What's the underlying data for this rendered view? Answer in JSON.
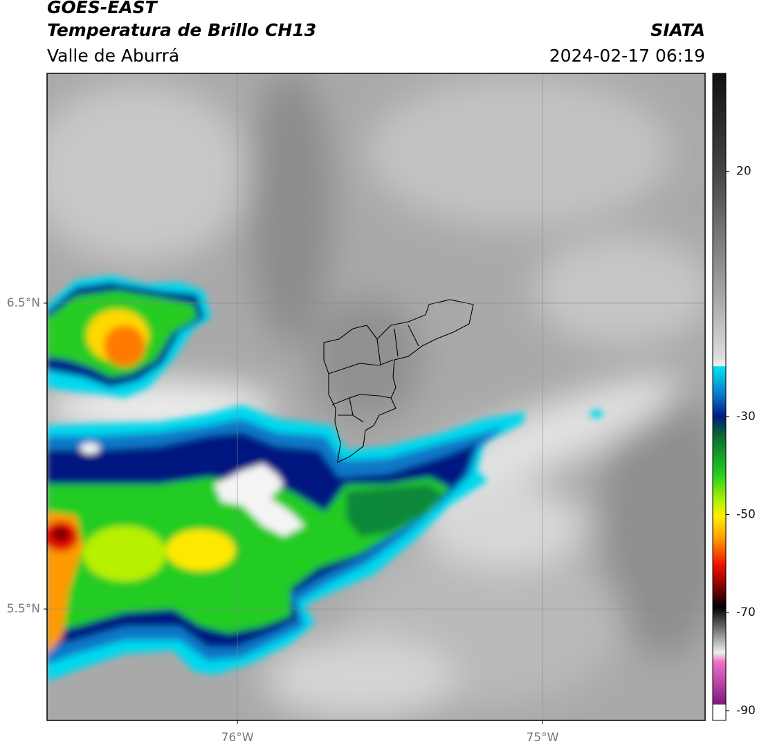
{
  "header": {
    "title": "GOES-EAST",
    "subtitle": "Temperatura de Brillo CH13",
    "region": "Valle de Aburrá",
    "source": "SIATA",
    "timestamp": "2024-02-17 06:19"
  },
  "map": {
    "xlim": [
      -76.624,
      -74.467
    ],
    "ylim": [
      5.136,
      7.251
    ],
    "xticks": [
      {
        "value": -76,
        "label": "76°W"
      },
      {
        "value": -75,
        "label": "75°W"
      }
    ],
    "yticks": [
      {
        "value": 6.5,
        "label": "6.5°N"
      },
      {
        "value": 5.5,
        "label": "5.5°N"
      }
    ],
    "grid": true
  },
  "colorbar": {
    "lim": [
      -92,
      40
    ],
    "ticks": [
      20,
      -30,
      -50,
      -70,
      -90
    ]
  }
}
